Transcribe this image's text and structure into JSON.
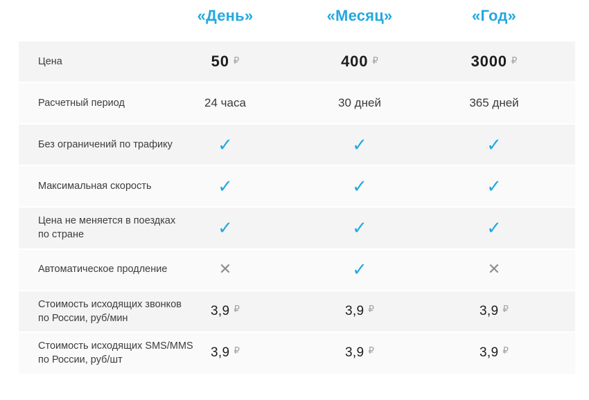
{
  "colors": {
    "accent_blue": "#24a8e0",
    "cross_gray": "#8d8d8d",
    "row_shade": "#f4f4f4",
    "row_light": "#fafafa"
  },
  "glyphs": {
    "check": "✓",
    "cross": "✕",
    "ruble": "₽"
  },
  "header": {
    "plans": [
      "«День»",
      "«Месяц»",
      "«Год»"
    ]
  },
  "table": {
    "rows": [
      {
        "label_lines": [
          "Цена"
        ],
        "kind": "price",
        "bold": true,
        "values": [
          "50",
          "400",
          "3000"
        ]
      },
      {
        "label_lines": [
          "Расчетный период"
        ],
        "kind": "text",
        "values": [
          "24 часа",
          "30 дней",
          "365 дней"
        ]
      },
      {
        "label_lines": [
          "Без ограничений по трафику"
        ],
        "kind": "marks",
        "values": [
          "check",
          "check",
          "check"
        ]
      },
      {
        "label_lines": [
          "Максимальная скорость"
        ],
        "kind": "marks",
        "values": [
          "check",
          "check",
          "check"
        ]
      },
      {
        "label_lines": [
          "Цена не меняется в поездках",
          "по стране"
        ],
        "kind": "marks",
        "values": [
          "check",
          "check",
          "check"
        ]
      },
      {
        "label_lines": [
          "Автоматическое продление"
        ],
        "kind": "marks",
        "values": [
          "cross",
          "check",
          "cross"
        ]
      },
      {
        "label_lines": [
          "Стоимость исходящих звонков",
          "по России, руб/мин"
        ],
        "kind": "price",
        "bold": false,
        "values": [
          "3,9",
          "3,9",
          "3,9"
        ]
      },
      {
        "label_lines": [
          "Стоимость исходящих SMS/MMS",
          "по России, руб/шт"
        ],
        "kind": "price",
        "bold": false,
        "values": [
          "3,9",
          "3,9",
          "3,9"
        ]
      }
    ]
  }
}
